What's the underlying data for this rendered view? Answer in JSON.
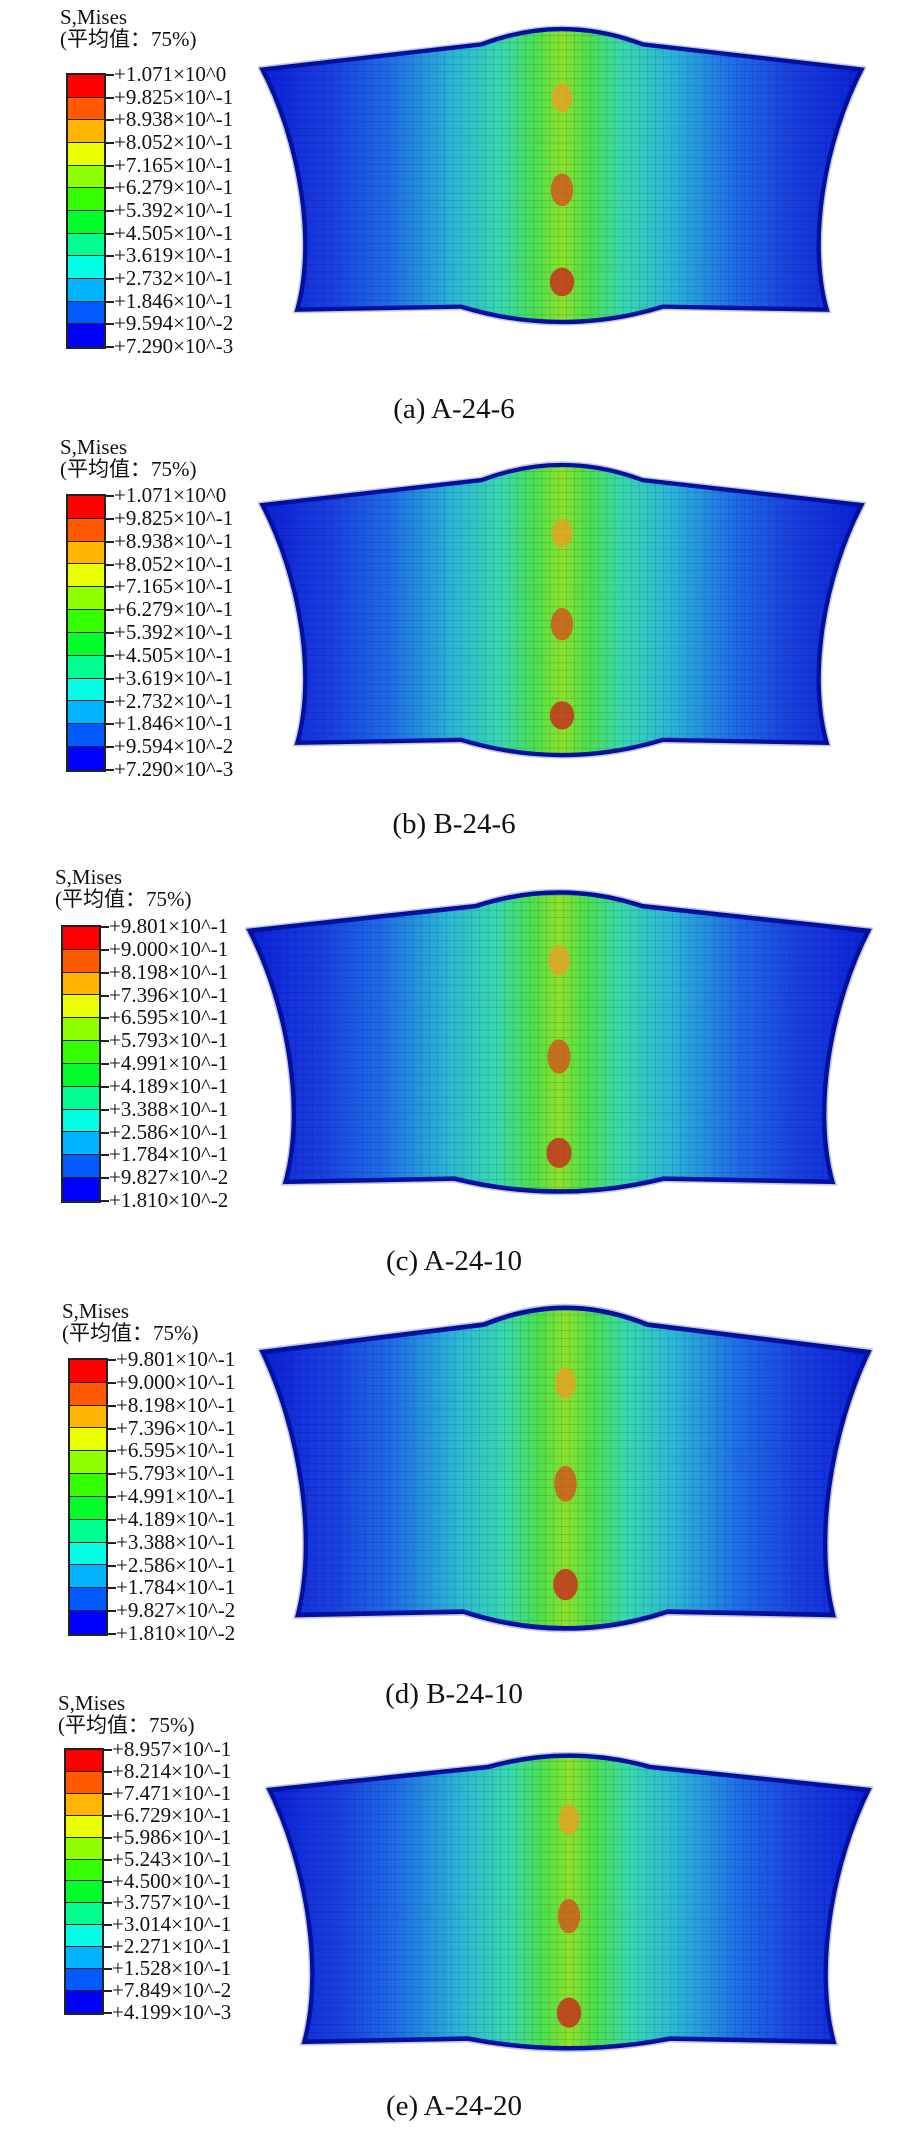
{
  "palette": [
    "#ff0000",
    "#ff5a00",
    "#ffb400",
    "#eaff00",
    "#90ff00",
    "#35ff00",
    "#00ff2a",
    "#00ff90",
    "#00ffe5",
    "#00b4ff",
    "#005aff",
    "#0000ff"
  ],
  "panels": [
    {
      "legend_title": "S,Mises",
      "legend_subtitle": "(平均值：75%)",
      "ticks": [
        "+1.071×10^0",
        "+9.825×10^-1",
        "+8.938×10^-1",
        "+8.052×10^-1",
        "+7.165×10^-1",
        "+6.279×10^-1",
        "+5.392×10^-1",
        "+4.505×10^-1",
        "+3.619×10^-1",
        "+2.732×10^-1",
        "+1.846×10^-1",
        "+9.594×10^-2",
        "+7.290×10^-3"
      ],
      "caption": "(a) A-24-6"
    },
    {
      "legend_title": "S,Mises",
      "legend_subtitle": "(平均值：75%)",
      "ticks": [
        "+1.071×10^0",
        "+9.825×10^-1",
        "+8.938×10^-1",
        "+8.052×10^-1",
        "+7.165×10^-1",
        "+6.279×10^-1",
        "+5.392×10^-1",
        "+4.505×10^-1",
        "+3.619×10^-1",
        "+2.732×10^-1",
        "+1.846×10^-1",
        "+9.594×10^-2",
        "+7.290×10^-3"
      ],
      "caption": "(b) B-24-6"
    },
    {
      "legend_title": "S,Mises",
      "legend_subtitle": "(平均值：75%)",
      "ticks": [
        "+9.801×10^-1",
        "+9.000×10^-1",
        "+8.198×10^-1",
        "+7.396×10^-1",
        "+6.595×10^-1",
        "+5.793×10^-1",
        "+4.991×10^-1",
        "+4.189×10^-1",
        "+3.388×10^-1",
        "+2.586×10^-1",
        "+1.784×10^-1",
        "+9.827×10^-2",
        "+1.810×10^-2"
      ],
      "caption": "(c) A-24-10"
    },
    {
      "legend_title": "S,Mises",
      "legend_subtitle": "(平均值：75%)",
      "ticks": [
        "+9.801×10^-1",
        "+9.000×10^-1",
        "+8.198×10^-1",
        "+7.396×10^-1",
        "+6.595×10^-1",
        "+5.793×10^-1",
        "+4.991×10^-1",
        "+4.189×10^-1",
        "+3.388×10^-1",
        "+2.586×10^-1",
        "+1.784×10^-1",
        "+9.827×10^-2",
        "+1.810×10^-2"
      ],
      "caption": "(d) B-24-10"
    },
    {
      "legend_title": "S,Mises",
      "legend_subtitle": "(平均值：75%)",
      "ticks": [
        "+8.957×10^-1",
        "+8.214×10^-1",
        "+7.471×10^-1",
        "+6.729×10^-1",
        "+5.986×10^-1",
        "+5.243×10^-1",
        "+4.500×10^-1",
        "+3.757×10^-1",
        "+3.014×10^-1",
        "+2.271×10^-1",
        "+1.528×10^-1",
        "+7.849×10^-2",
        "+4.199×10^-3"
      ],
      "caption": "(e) A-24-20"
    }
  ]
}
